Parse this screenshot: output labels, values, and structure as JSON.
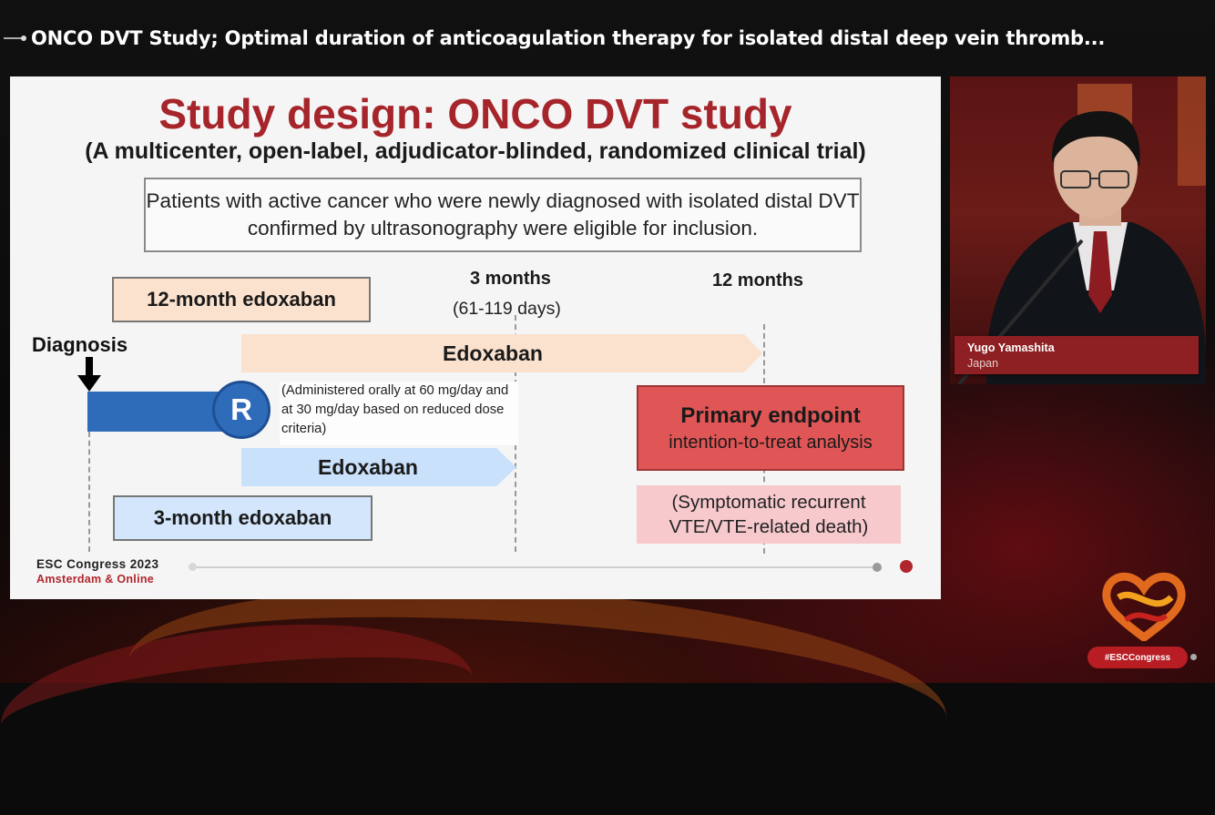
{
  "broadcast": {
    "title": "ONCO DVT Study; Optimal duration of anticoagulation therapy for isolated distal deep vein thromb..."
  },
  "slide": {
    "title": "Study design: ONCO DVT study",
    "subtitle": "(A multicenter, open-label, adjudicator-blinded, randomized clinical trial)",
    "eligibility": "Patients with active cancer who were newly diagnosed with isolated distal DVT confirmed by ultrasonography were eligible for inclusion.",
    "timepoint_3m": "3 months",
    "timepoint_3m_days": "(61-119 days)",
    "timepoint_12m": "12 months",
    "arm_12m_label": "12-month edoxaban",
    "arm_3m_label": "3-month edoxaban",
    "diagnosis_label": "Diagnosis",
    "randomization_label": "R",
    "dosing_note": "(Administered orally at 60 mg/day and at 30 mg/day based on reduced dose criteria)",
    "edoxaban_long": "Edoxaban",
    "edoxaban_short": "Edoxaban",
    "primary_endpoint_title": "Primary endpoint",
    "primary_endpoint_sub": "intention-to-treat analysis",
    "primary_endpoint_def": "(Symptomatic recurrent VTE/VTE-related death)",
    "footer_event": "ESC Congress 2023",
    "footer_location": "Amsterdam & Online",
    "colors": {
      "title_red": "#a6252b",
      "arm_12m_fill": "#fbe2cf",
      "arm_3m_fill": "#d3e6fb",
      "randomization_blue": "#2e6cba",
      "primary_red": "#e05656",
      "primary_def_pink": "#f7c9cd"
    }
  },
  "speaker": {
    "name": "Yugo Yamashita",
    "country": "Japan"
  },
  "branding": {
    "hashtag": "#ESCCongress",
    "logo_icon": "esc-heart-logo-icon"
  }
}
